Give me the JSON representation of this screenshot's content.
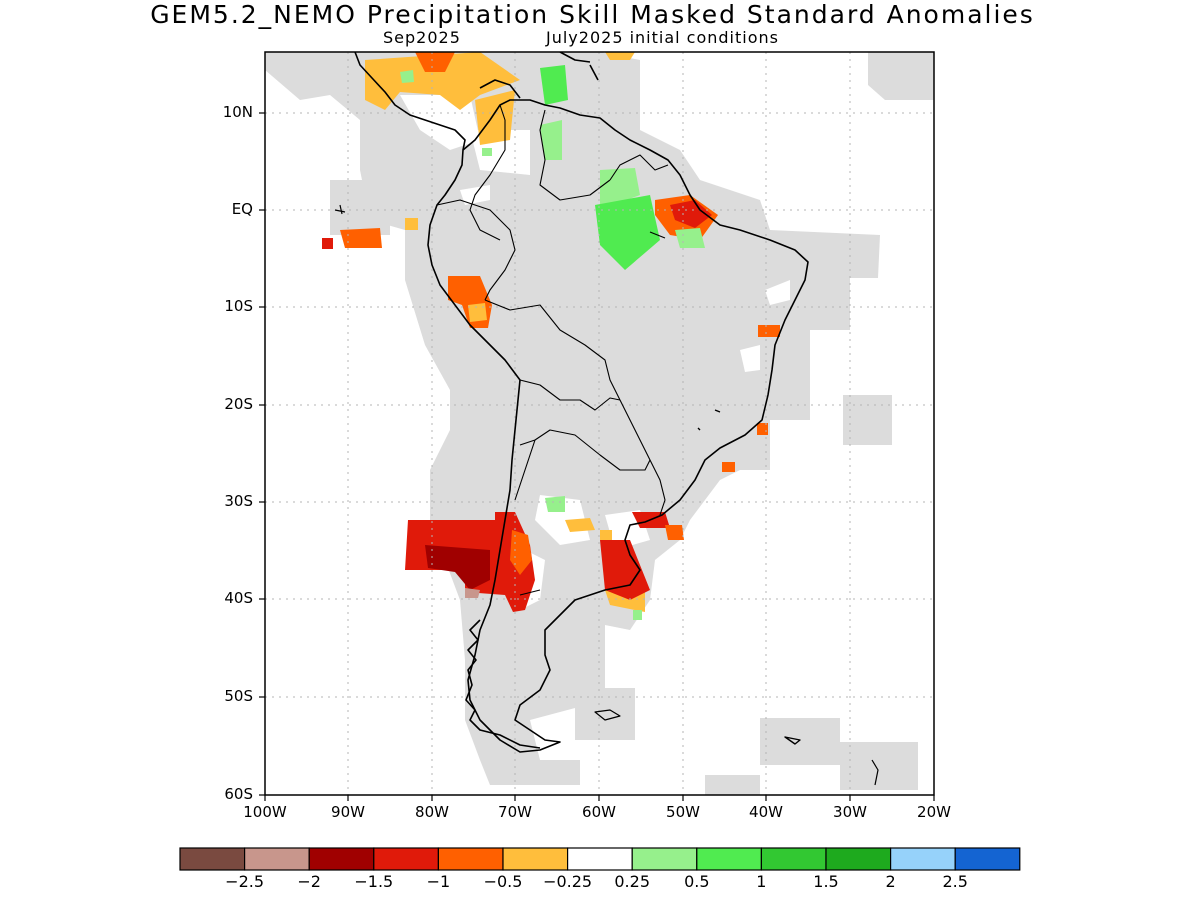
{
  "title": "GEM5.2_NEMO Precipitation Skill Masked Standard Anomalies",
  "subtitle_left": "Sep2025",
  "subtitle_right": "July2025 initial conditions",
  "lat_labels": [
    "10N",
    "EQ",
    "10S",
    "20S",
    "30S",
    "40S",
    "50S",
    "60S"
  ],
  "lon_labels": [
    "100W",
    "90W",
    "80W",
    "70W",
    "60W",
    "50W",
    "40W",
    "30W",
    "20W"
  ],
  "colorbar": {
    "colors": [
      "#7a4a40",
      "#c8968c",
      "#a00000",
      "#e01a0a",
      "#ff6000",
      "#ffbe3c",
      "#ffffff",
      "#96f08c",
      "#50eb50",
      "#32c832",
      "#1eaa1e",
      "#96d2fa",
      "#1464d2"
    ],
    "labels": [
      "−2.5",
      "−2",
      "−1.5",
      "−1",
      "−0.5",
      "−0.25",
      "0.25",
      "0.5",
      "1",
      "1.5",
      "2",
      "2.5"
    ]
  },
  "colors": {
    "mask_gray": "#dcdcdc",
    "coastline": "#000000",
    "grid": "#b4b4b4"
  }
}
